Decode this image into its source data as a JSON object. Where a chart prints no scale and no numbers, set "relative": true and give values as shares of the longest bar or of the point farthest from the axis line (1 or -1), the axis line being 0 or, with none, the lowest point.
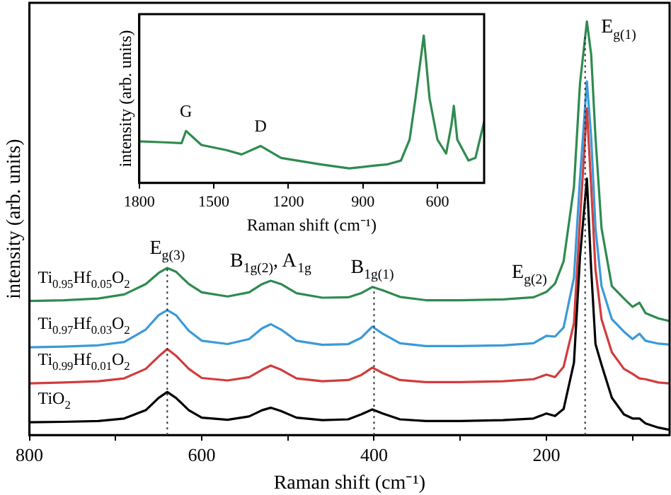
{
  "chart_data": [
    {
      "type": "line",
      "relative": true,
      "xlabel": "Raman shift (cm⁻¹)",
      "ylabel": "intensity (arb. units)",
      "xlim": [
        800,
        57
      ],
      "xticks": [
        800,
        {
          "value": 700,
          "label": null
        },
        600,
        {
          "value": 500,
          "label": null
        },
        400,
        {
          "value": 300,
          "label": null
        },
        200,
        {
          "value": 100,
          "label": null
        }
      ],
      "x": [
        800,
        760,
        720,
        690,
        665,
        650,
        640,
        630,
        615,
        600,
        570,
        545,
        530,
        520,
        508,
        490,
        460,
        430,
        415,
        402,
        390,
        370,
        340,
        300,
        250,
        215,
        200,
        190,
        180,
        168,
        161,
        153,
        148,
        143,
        136,
        124,
        110,
        100,
        92,
        85,
        70,
        58
      ],
      "series": [
        {
          "name": "TiO$_{2}$",
          "color": "#000000",
          "values": [
            0.031,
            0.032,
            0.034,
            0.04,
            0.06,
            0.09,
            0.104,
            0.09,
            0.06,
            0.042,
            0.037,
            0.045,
            0.06,
            0.066,
            0.058,
            0.042,
            0.036,
            0.038,
            0.05,
            0.062,
            0.052,
            0.038,
            0.034,
            0.034,
            0.036,
            0.04,
            0.052,
            0.046,
            0.063,
            0.175,
            0.43,
            0.62,
            0.4,
            0.22,
            0.17,
            0.09,
            0.05,
            0.04,
            0.04,
            0.028,
            0.018,
            0.013
          ]
        },
        {
          "name": "Ti$_{0.99}$Hf$_{0.01}$O$_{2}$",
          "color": "#d23c3c",
          "values": [
            0.125,
            0.127,
            0.13,
            0.137,
            0.16,
            0.19,
            0.208,
            0.192,
            0.16,
            0.138,
            0.132,
            0.14,
            0.158,
            0.168,
            0.158,
            0.137,
            0.13,
            0.133,
            0.145,
            0.163,
            0.15,
            0.133,
            0.128,
            0.128,
            0.13,
            0.135,
            0.146,
            0.14,
            0.165,
            0.27,
            0.52,
            0.79,
            0.6,
            0.4,
            0.28,
            0.2,
            0.16,
            0.148,
            0.137,
            0.135,
            0.127,
            0.125
          ]
        },
        {
          "name": "Ti$_{0.97}$Hf$_{0.03}$O$_{2}$",
          "color": "#3a9ad9",
          "values": [
            0.212,
            0.214,
            0.217,
            0.225,
            0.255,
            0.29,
            0.302,
            0.29,
            0.252,
            0.228,
            0.22,
            0.232,
            0.258,
            0.268,
            0.255,
            0.228,
            0.218,
            0.22,
            0.235,
            0.262,
            0.245,
            0.222,
            0.215,
            0.215,
            0.217,
            0.222,
            0.24,
            0.238,
            0.26,
            0.38,
            0.62,
            0.855,
            0.72,
            0.5,
            0.36,
            0.28,
            0.25,
            0.232,
            0.245,
            0.228,
            0.221,
            0.219
          ]
        },
        {
          "name": "Ti$_{0.95}$Hf$_{0.05}$O$_{2}$",
          "color": "#2e8b4f",
          "values": [
            0.324,
            0.326,
            0.33,
            0.34,
            0.365,
            0.392,
            0.404,
            0.395,
            0.365,
            0.345,
            0.335,
            0.345,
            0.365,
            0.373,
            0.365,
            0.343,
            0.332,
            0.333,
            0.343,
            0.358,
            0.35,
            0.334,
            0.326,
            0.326,
            0.328,
            0.333,
            0.346,
            0.366,
            0.42,
            0.6,
            0.85,
            1.0,
            0.92,
            0.72,
            0.5,
            0.36,
            0.33,
            0.31,
            0.32,
            0.295,
            0.282,
            0.276
          ]
        }
      ],
      "ref_lines": [
        {
          "axis": "x",
          "value": 640,
          "color": "#333333",
          "line_style": "dotted"
        },
        {
          "axis": "x",
          "value": 400,
          "color": "#333333",
          "line_style": "dotted"
        },
        {
          "axis": "x",
          "value": 155,
          "color": "#333333",
          "line_style": "dotted"
        }
      ],
      "annotations": [
        {
          "text": "E$_{g(3)}$",
          "x": 640,
          "y": 0.404
        },
        {
          "text": "B$_{1g(2)}$, A$_{1g}$",
          "x": 520,
          "y": 0.373
        },
        {
          "text": "B$_{1g(1)}$",
          "x": 402,
          "y": 0.358
        },
        {
          "text": "E$_{g(2)}$",
          "x": 200,
          "y": 0.346
        },
        {
          "text": "E$_{g(1)}$",
          "x": 153,
          "y": 1.0
        }
      ]
    },
    {
      "type": "line",
      "relative": true,
      "xlabel": "Raman shift (cm⁻¹)",
      "ylabel": "intensity (arb. units)",
      "xlim": [
        1800,
        412
      ],
      "xticks": [
        1800,
        1500,
        1200,
        900,
        600
      ],
      "x": [
        1800,
        1700,
        1630,
        1612,
        1550,
        1450,
        1388,
        1312,
        1229,
        1072,
        955,
        859,
        800,
        747,
        712,
        688,
        655,
        632,
        600,
        565,
        543,
        534,
        520,
        475,
        447,
        412
      ],
      "series": [
        {
          "color": "#2e8b4f",
          "values": [
            0.283,
            0.276,
            0.27,
            0.353,
            0.258,
            0.223,
            0.194,
            0.251,
            0.17,
            0.127,
            0.099,
            0.117,
            0.127,
            0.152,
            0.294,
            0.577,
            1.0,
            0.577,
            0.294,
            0.2,
            0.4,
            0.523,
            0.294,
            0.152,
            0.17,
            0.417
          ]
        }
      ],
      "annotations": [
        {
          "text": "G",
          "x": 1612,
          "y": 0.353
        },
        {
          "text": "D",
          "x": 1312,
          "y": 0.251
        }
      ]
    }
  ]
}
